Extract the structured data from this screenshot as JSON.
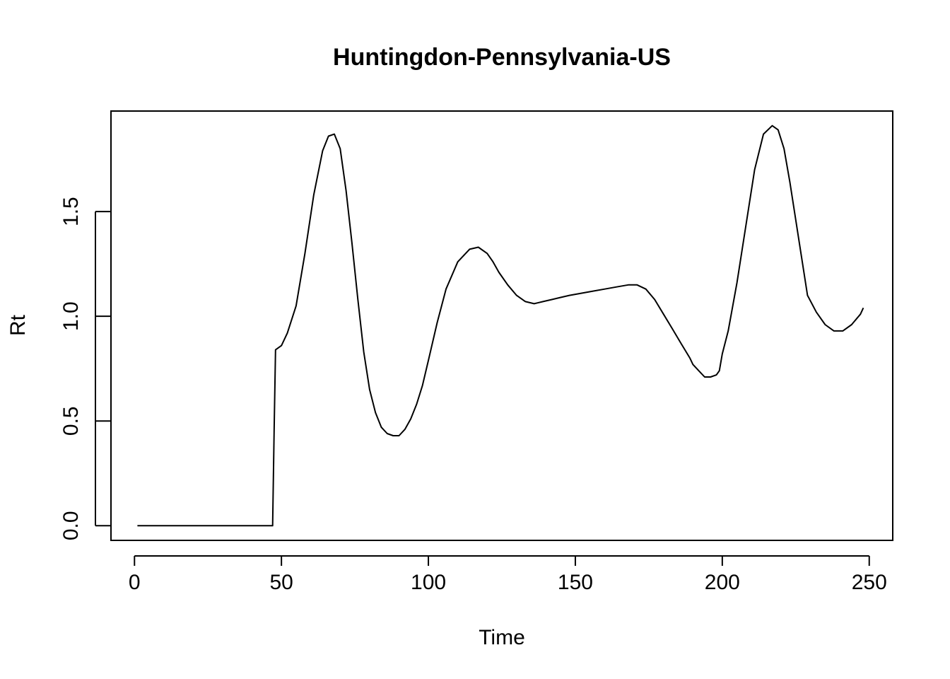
{
  "chart_data": {
    "type": "line",
    "title": "Huntingdon-Pennsylvania-US",
    "xlabel": "Time",
    "ylabel": "Rt",
    "xlim": [
      -8,
      258
    ],
    "ylim": [
      -0.07,
      1.98
    ],
    "x_ticks": [
      0,
      50,
      100,
      150,
      200,
      250
    ],
    "x_tick_labels": [
      "0",
      "50",
      "100",
      "150",
      "200",
      "250"
    ],
    "y_ticks": [
      0.0,
      0.5,
      1.0,
      1.5
    ],
    "y_tick_labels": [
      "0.0",
      "0.5",
      "1.0",
      "1.5"
    ],
    "grid": false,
    "legend": "none",
    "color": "#000000",
    "series": [
      {
        "x": [
          1,
          10,
          20,
          30,
          40,
          47,
          47.5,
          48,
          50,
          52,
          55,
          58,
          61,
          64,
          66,
          68,
          70,
          72,
          74,
          76,
          78,
          80,
          82,
          84,
          86,
          88,
          90,
          92,
          94,
          96,
          98,
          100,
          103,
          106,
          110,
          114,
          117,
          120,
          122,
          124,
          127,
          130,
          133,
          136,
          139,
          142,
          145,
          148,
          152,
          156,
          160,
          164,
          168,
          171,
          174,
          177,
          180,
          183,
          186,
          189,
          190,
          192,
          194,
          196,
          198,
          199,
          200,
          202,
          205,
          208,
          211,
          214,
          217,
          219,
          221,
          223,
          225,
          227,
          229,
          232,
          235,
          238,
          241,
          244,
          247,
          248
        ],
        "y": [
          0,
          0,
          0,
          0,
          0,
          0,
          0.45,
          0.84,
          0.86,
          0.92,
          1.05,
          1.3,
          1.58,
          1.79,
          1.86,
          1.87,
          1.8,
          1.6,
          1.35,
          1.08,
          0.83,
          0.65,
          0.54,
          0.47,
          0.44,
          0.43,
          0.43,
          0.46,
          0.51,
          0.58,
          0.67,
          0.79,
          0.97,
          1.13,
          1.26,
          1.32,
          1.33,
          1.3,
          1.26,
          1.21,
          1.15,
          1.1,
          1.07,
          1.06,
          1.07,
          1.08,
          1.09,
          1.1,
          1.11,
          1.12,
          1.13,
          1.14,
          1.15,
          1.15,
          1.13,
          1.08,
          1.01,
          0.94,
          0.87,
          0.8,
          0.77,
          0.74,
          0.71,
          0.71,
          0.72,
          0.74,
          0.82,
          0.93,
          1.16,
          1.43,
          1.7,
          1.87,
          1.91,
          1.89,
          1.8,
          1.64,
          1.46,
          1.28,
          1.1,
          1.02,
          0.96,
          0.93,
          0.93,
          0.96,
          1.01,
          1.04
        ]
      }
    ]
  }
}
